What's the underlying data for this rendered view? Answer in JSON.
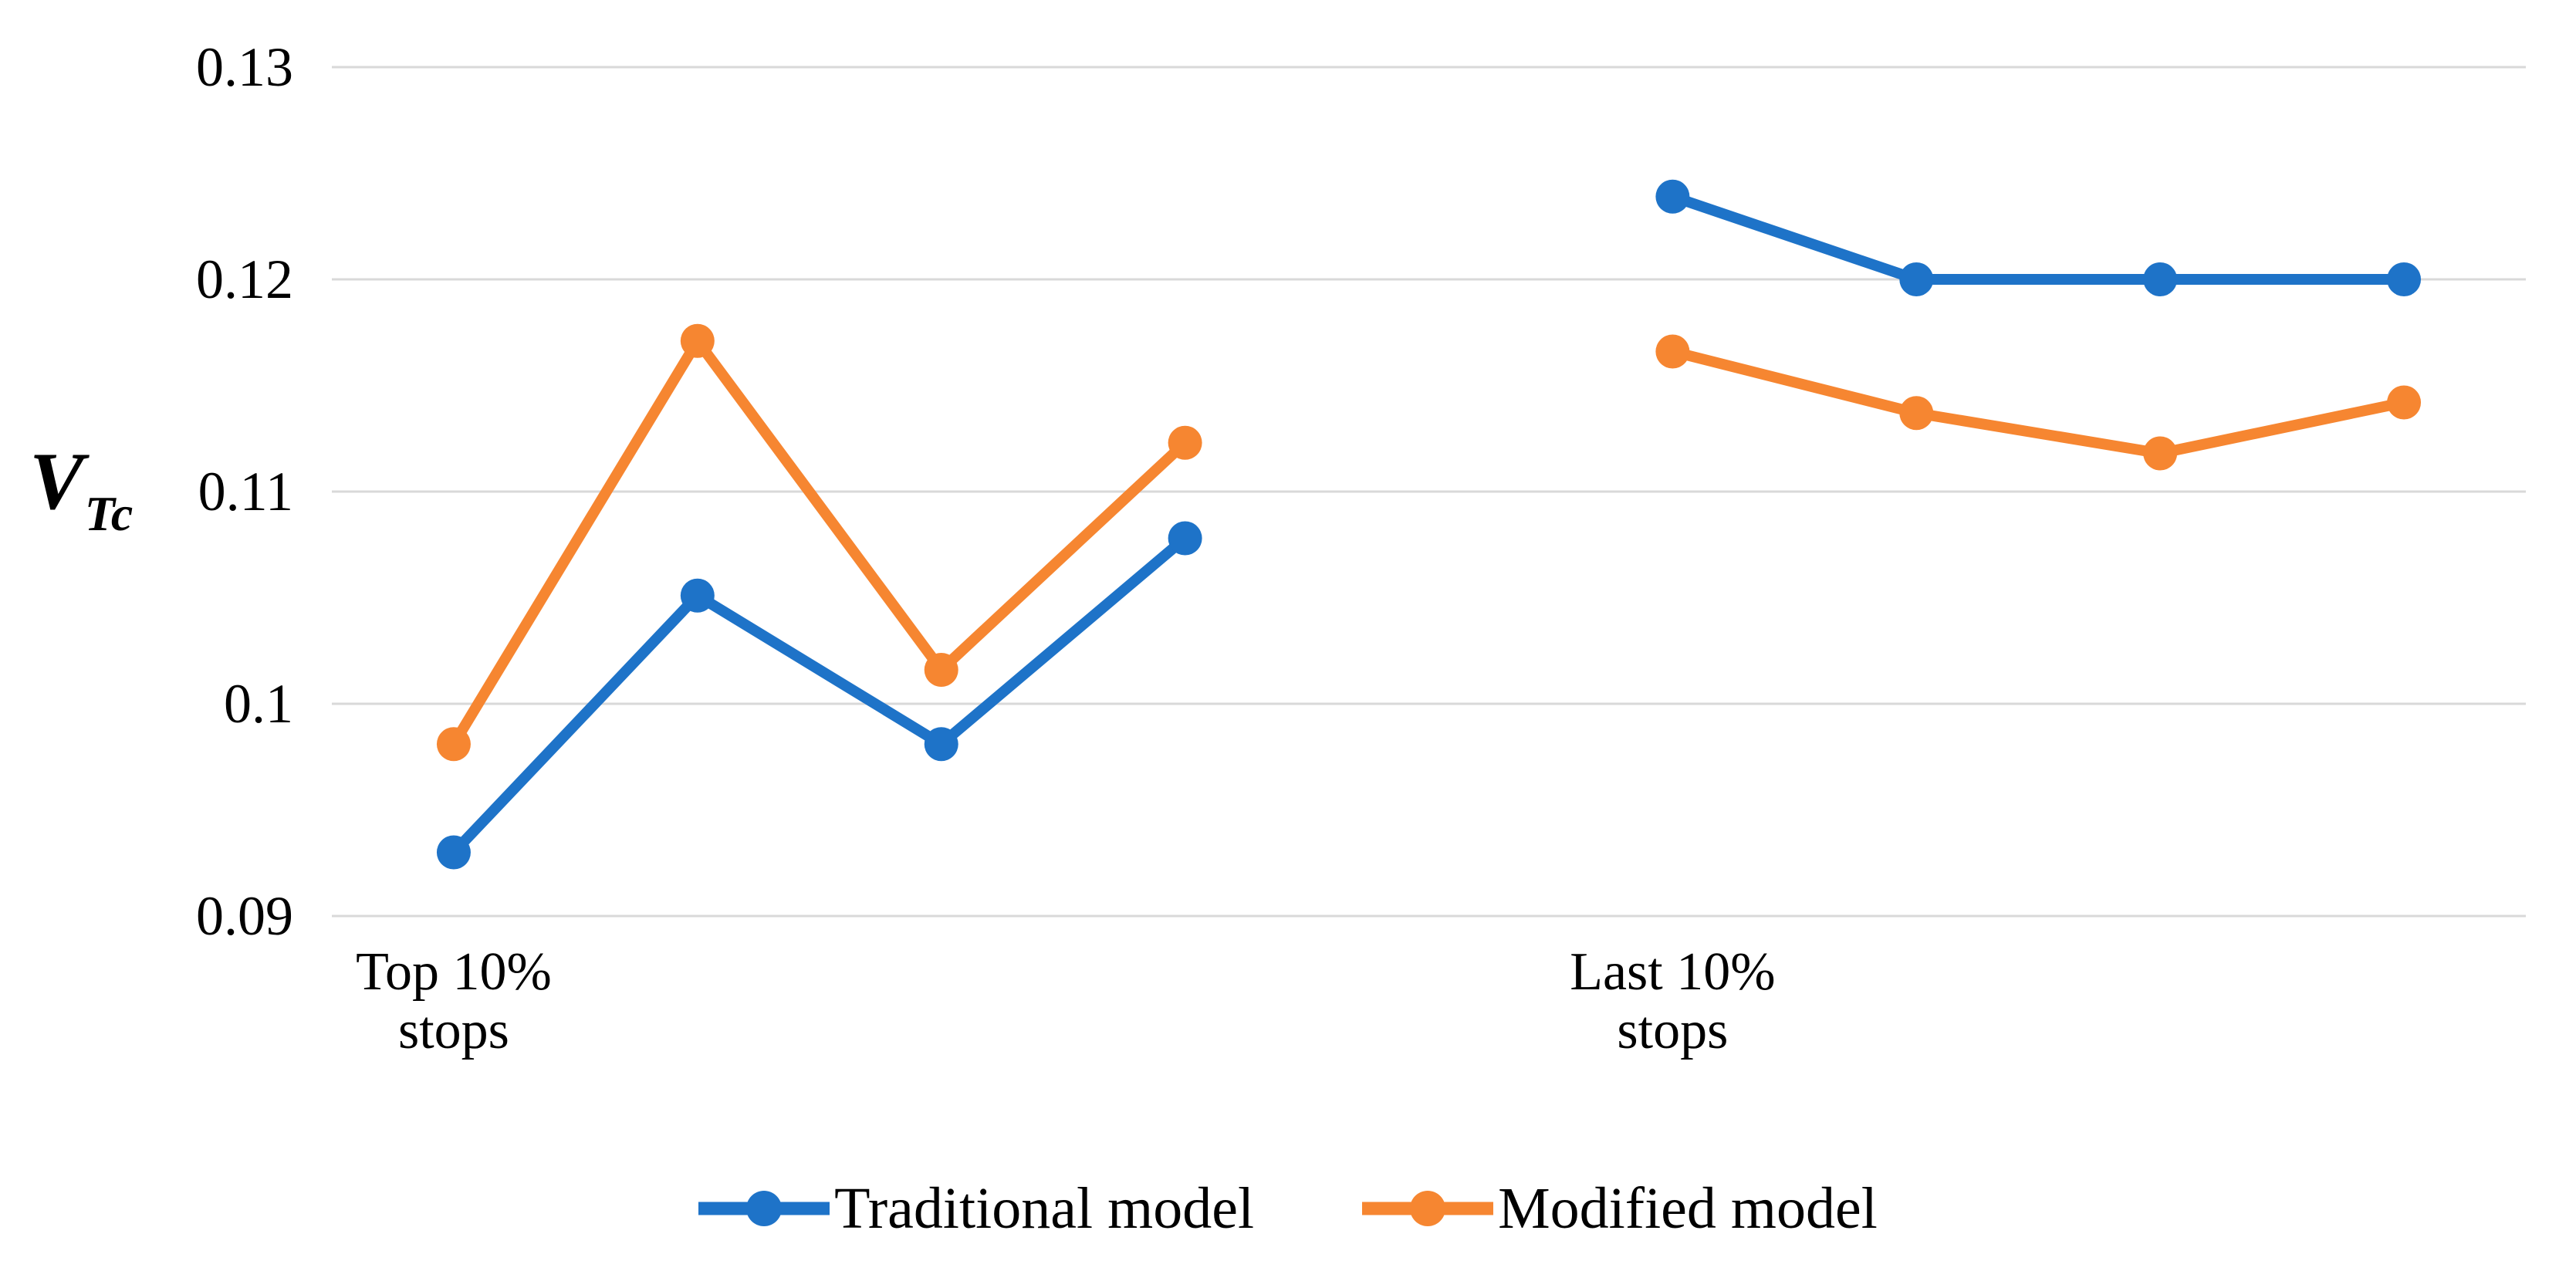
{
  "chart_data": {
    "type": "line",
    "title": "",
    "y_axis": {
      "title_main": "V",
      "title_sub": "Tc",
      "range": [
        0.09,
        0.13
      ],
      "grid": true,
      "ticks": [
        {
          "label": "0.13",
          "value": 0.13
        },
        {
          "label": "0.12",
          "value": 0.12
        },
        {
          "label": "0.11",
          "value": 0.11
        },
        {
          "label": "0.1",
          "value": 0.1
        },
        {
          "label": "0.09",
          "value": 0.09
        }
      ]
    },
    "x_axis": {
      "n_slots": 9,
      "group_labels": [
        {
          "slot": 0,
          "lines": [
            "Top 10%",
            "stops"
          ]
        },
        {
          "slot": 5,
          "lines": [
            "Last 10%",
            "stops"
          ]
        }
      ]
    },
    "series": [
      {
        "name": "Traditional model",
        "color": "#1E73C8",
        "segments": [
          {
            "slots": [
              0,
              1,
              2,
              3
            ],
            "values": [
              0.093,
              0.1051,
              0.0981,
              0.1078
            ]
          },
          {
            "slots": [
              5,
              6,
              7,
              8
            ],
            "values": [
              0.1239,
              0.12,
              0.12,
              0.12
            ]
          }
        ]
      },
      {
        "name": "Modified model",
        "color": "#F68631",
        "segments": [
          {
            "slots": [
              0,
              1,
              2,
              3
            ],
            "values": [
              0.0981,
              0.1171,
              0.1016,
              0.1123
            ]
          },
          {
            "slots": [
              5,
              6,
              7,
              8
            ],
            "values": [
              0.1166,
              0.1137,
              0.1118,
              0.1142
            ]
          }
        ]
      }
    ],
    "legend": {
      "position": "bottom",
      "items": [
        "Traditional model",
        "Modified model"
      ]
    }
  },
  "style": {
    "gridline_color": "#D9D9D9",
    "text_color": "#000000",
    "background": "#FFFFFF",
    "line_width": 14,
    "marker_radius": 22
  }
}
